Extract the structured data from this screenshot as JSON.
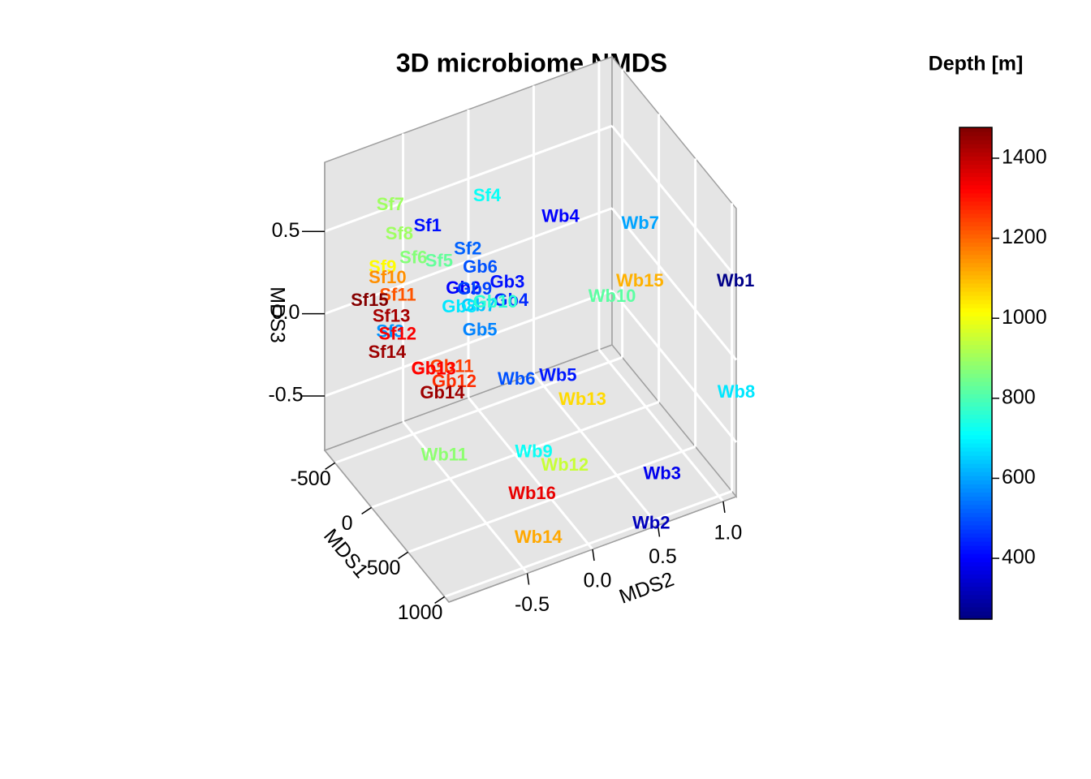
{
  "chart_data": {
    "type": "scatter3d",
    "title": "3D microbiome NMDS",
    "xlabel": "MDS1",
    "ylabel": "MDS2",
    "zlabel": "MDS3",
    "xlim": [
      -640,
      1060
    ],
    "ylim": [
      -1.1,
      1.1
    ],
    "zlim": [
      -0.83,
      0.92
    ],
    "xticks": [
      -500,
      0,
      500,
      1000
    ],
    "yticks": [
      {
        "value": -0.5,
        "label": "-0.5"
      },
      {
        "value": 0,
        "label": "0.0"
      },
      {
        "value": 0.5,
        "label": "0.5"
      },
      {
        "value": 1,
        "label": "1.0"
      }
    ],
    "zticks": [
      {
        "value": -0.5,
        "label": "-0.5"
      },
      {
        "value": 0,
        "label": "0.0"
      },
      {
        "value": 0.5,
        "label": "0.5"
      }
    ],
    "grid": true,
    "labels": [
      "Sf1",
      "Sf2",
      "Sf3",
      "Sf4",
      "Sf5",
      "Sf6",
      "Sf7",
      "Sf8",
      "Sf9",
      "Sf10",
      "Sf11",
      "Sf12",
      "Sf13",
      "Sf14",
      "Sf15",
      "Gb1",
      "Gb2",
      "Gb3",
      "Gb4",
      "Gb5",
      "Gb6",
      "Gb7",
      "Gb8",
      "Gb9",
      "Gb10",
      "Gb11",
      "Gb12",
      "Gb13",
      "Gb14",
      "Wb1",
      "Wb2",
      "Wb3",
      "Wb4",
      "Wb5",
      "Wb6",
      "Wb7",
      "Wb8",
      "Wb9",
      "Wb10",
      "Wb11",
      "Wb12",
      "Wb13",
      "Wb14",
      "Wb15",
      "Wb16"
    ],
    "x": [
      -215,
      -130,
      -300,
      -45,
      -130,
      -266,
      -385,
      -334,
      -385,
      -334,
      -266,
      -215,
      -300,
      -215,
      -436,
      210,
      40,
      125,
      125,
      125,
      40,
      125,
      74,
      125,
      176,
      295,
      346,
      244,
      380,
      1050,
      1040,
      975,
      210,
      550,
      465,
      550,
      1060,
      720,
      380,
      210,
      805,
      635,
      890,
      635,
      805
    ],
    "y": [
      -0.55,
      -0.29,
      -0.79,
      -0.19,
      -0.51,
      -0.63,
      -0.74,
      -0.7,
      -0.8,
      -0.79,
      -0.75,
      -0.78,
      -0.78,
      -0.86,
      -0.87,
      -0.78,
      -0.42,
      -0.13,
      -0.1,
      -0.34,
      -0.29,
      -0.35,
      -0.47,
      -0.38,
      -0.25,
      -0.65,
      -0.66,
      -0.76,
      -0.77,
      1.1,
      0.46,
      0.58,
      0.23,
      0.02,
      -0.25,
      0.65,
      1.1,
      -0.26,
      0.53,
      -0.66,
      -0.07,
      0.16,
      -0.32,
      0.6,
      -0.32
    ],
    "z": [
      0.6,
      0.43,
      -0.02,
      0.77,
      0.42,
      0.4,
      0.69,
      0.53,
      0.33,
      0.29,
      0.21,
      0.01,
      0.07,
      -0.08,
      0.12,
      0.03,
      0.32,
      0.32,
      0.2,
      0.09,
      0.41,
      0.24,
      0.24,
      0.35,
      0.26,
      0.05,
      -0.01,
      0.04,
      -0.03,
      0.47,
      -0.82,
      -0.59,
      0.66,
      -0.06,
      -0.05,
      0.68,
      -0.2,
      -0.35,
      0.18,
      -0.53,
      -0.44,
      -0.2,
      -0.76,
      0.39,
      -0.54
    ],
    "depth": [
      420,
      520,
      580,
      720,
      830,
      870,
      900,
      900,
      1020,
      1150,
      1220,
      1330,
      1430,
      1440,
      1470,
      1300,
      400,
      420,
      450,
      560,
      500,
      640,
      680,
      480,
      760,
      1250,
      1270,
      1320,
      1440,
      260,
      320,
      380,
      400,
      430,
      500,
      600,
      680,
      720,
      820,
      880,
      950,
      1060,
      1120,
      1110,
      1350
    ],
    "colorbar": {
      "title": "Depth [m]",
      "lim": [
        248,
        1477
      ],
      "ticks": [
        400,
        600,
        800,
        1000,
        1200,
        1400
      ],
      "colormap": [
        "#00007f",
        "#0000ff",
        "#007fff",
        "#00ffff",
        "#7fff7f",
        "#ffff00",
        "#ff7f00",
        "#ff0000",
        "#7f0000"
      ]
    }
  }
}
